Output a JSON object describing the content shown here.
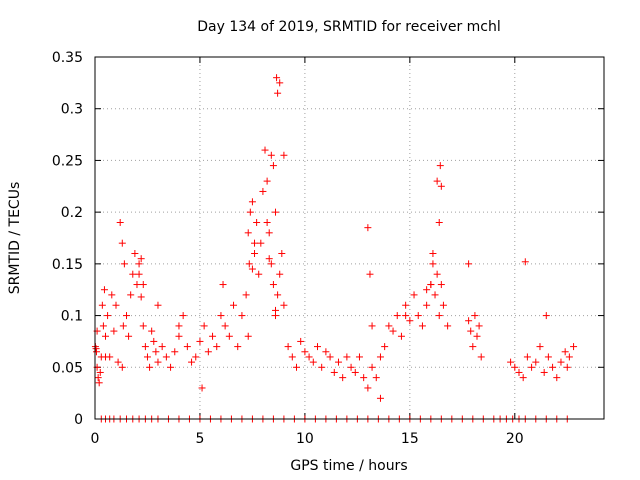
{
  "chart_data": {
    "type": "scatter",
    "title": "Day 134 of 2019, SRMTID for receiver mchl",
    "xlabel": "GPS time / hours",
    "ylabel": "SRMTID / TECUs",
    "xlim": [
      0,
      24.25
    ],
    "ylim": [
      0,
      0.35
    ],
    "xticks": [
      0,
      5,
      10,
      15,
      20
    ],
    "xtick_labels": [
      "0",
      "5",
      "10",
      "15",
      "20"
    ],
    "yticks": [
      0,
      0.05,
      0.1,
      0.15,
      0.2,
      0.25,
      0.3,
      0.35
    ],
    "ytick_labels": [
      "0",
      "0.05",
      "0.1",
      "0.15",
      "0.2",
      "0.25",
      "0.3",
      "0.35"
    ],
    "grid": true,
    "marker": "plus",
    "color": "#ff0000",
    "series": [
      {
        "name": "SRMTID",
        "x": [
          0.02,
          0.05,
          0.1,
          0.15,
          0.2,
          0.25,
          0.3,
          0.35,
          0.4,
          0.45,
          0.5,
          0.6,
          0.7,
          0.8,
          0.9,
          1.0,
          1.1,
          1.2,
          1.3,
          1.4,
          1.5,
          1.6,
          1.7,
          1.8,
          1.9,
          2.0,
          2.1,
          2.2,
          2.3,
          2.4,
          2.5,
          2.6,
          2.7,
          2.8,
          2.9,
          3.0,
          3.2,
          3.4,
          3.6,
          3.8,
          4.0,
          4.2,
          4.4,
          4.6,
          4.8,
          5.0,
          5.2,
          5.4,
          5.6,
          5.8,
          6.0,
          6.2,
          6.4,
          6.6,
          6.8,
          7.0,
          7.2,
          7.3,
          7.4,
          7.5,
          7.6,
          7.7,
          7.8,
          7.9,
          8.0,
          8.1,
          8.2,
          8.3,
          8.4,
          8.5,
          8.6,
          8.7,
          8.8,
          8.9,
          9.0,
          9.2,
          9.4,
          9.6,
          9.8,
          10.0,
          10.2,
          10.4,
          10.6,
          10.8,
          11.0,
          11.2,
          11.4,
          11.6,
          11.8,
          12.0,
          12.2,
          12.4,
          12.6,
          12.8,
          13.0,
          13.2,
          13.4,
          13.6,
          13.8,
          14.0,
          14.2,
          14.4,
          14.6,
          14.8,
          15.0,
          15.2,
          15.4,
          15.6,
          15.8,
          16.0,
          16.1,
          16.2,
          16.3,
          16.4,
          16.5,
          16.6,
          16.8,
          17.8,
          17.9,
          18.0,
          18.1,
          18.2,
          18.3,
          18.4,
          19.8,
          20.0,
          20.2,
          20.4,
          20.6,
          20.8,
          21.0,
          21.2,
          21.4,
          21.6,
          21.8,
          22.0,
          22.2,
          22.4,
          22.6,
          22.8,
          0.07,
          0.5,
          1.3,
          1.35,
          2.1,
          2.2,
          2.3,
          3.0,
          4.0,
          5.1,
          6.1,
          7.3,
          7.35,
          7.5,
          7.6,
          8.2,
          8.3,
          8.4,
          8.5,
          8.6,
          8.6,
          8.65,
          8.7,
          8.8,
          9.0,
          13.0,
          13.1,
          13.2,
          13.6,
          14.8,
          15.8,
          16.0,
          16.1,
          16.3,
          16.4,
          16.45,
          16.5,
          17.8,
          20.5,
          21.5,
          22.5,
          0.1,
          0.3,
          0.5,
          0.7,
          0.9,
          1.2,
          1.5,
          1.8,
          2.1,
          2.4,
          2.7,
          3.0,
          3.5,
          4.0,
          4.5,
          5.0,
          5.5,
          6.0,
          6.5,
          7.0,
          7.5,
          8.0,
          8.5,
          9.0,
          9.5,
          10.0,
          10.5,
          11.0,
          11.5,
          12.0,
          12.5,
          13.0,
          13.5,
          14.0,
          14.5,
          15.0,
          15.5,
          16.0,
          16.5,
          17.0,
          17.5,
          18.0,
          18.5,
          19.0,
          19.3,
          19.6,
          19.9,
          20.2,
          20.5,
          21.0,
          21.5,
          22.0,
          22.5
        ],
        "y": [
          0.07,
          0.068,
          0.05,
          0.04,
          0.035,
          0.045,
          0.06,
          0.11,
          0.09,
          0.125,
          0.08,
          0.1,
          0.06,
          0.12,
          0.085,
          0.11,
          0.055,
          0.19,
          0.17,
          0.15,
          0.1,
          0.08,
          0.12,
          0.14,
          0.16,
          0.13,
          0.15,
          0.118,
          0.09,
          0.07,
          0.06,
          0.05,
          0.085,
          0.075,
          0.065,
          0.055,
          0.07,
          0.06,
          0.05,
          0.065,
          0.08,
          0.1,
          0.07,
          0.055,
          0.06,
          0.075,
          0.09,
          0.065,
          0.08,
          0.07,
          0.1,
          0.09,
          0.08,
          0.11,
          0.07,
          0.1,
          0.12,
          0.18,
          0.2,
          0.21,
          0.16,
          0.19,
          0.14,
          0.17,
          0.22,
          0.26,
          0.23,
          0.18,
          0.15,
          0.13,
          0.1,
          0.12,
          0.14,
          0.16,
          0.11,
          0.07,
          0.06,
          0.05,
          0.075,
          0.065,
          0.06,
          0.055,
          0.07,
          0.05,
          0.065,
          0.06,
          0.045,
          0.055,
          0.04,
          0.06,
          0.05,
          0.045,
          0.06,
          0.04,
          0.03,
          0.05,
          0.04,
          0.06,
          0.07,
          0.09,
          0.085,
          0.1,
          0.08,
          0.11,
          0.095,
          0.12,
          0.1,
          0.09,
          0.11,
          0.13,
          0.15,
          0.12,
          0.14,
          0.1,
          0.13,
          0.11,
          0.09,
          0.095,
          0.085,
          0.07,
          0.1,
          0.08,
          0.09,
          0.06,
          0.055,
          0.05,
          0.045,
          0.04,
          0.06,
          0.05,
          0.055,
          0.07,
          0.045,
          0.06,
          0.05,
          0.04,
          0.055,
          0.065,
          0.06,
          0.07,
          0.065,
          0.06,
          0.05,
          0.09,
          0.14,
          0.155,
          0.13,
          0.11,
          0.09,
          0.03,
          0.13,
          0.08,
          0.15,
          0.145,
          0.17,
          0.19,
          0.155,
          0.255,
          0.245,
          0.2,
          0.105,
          0.33,
          0.315,
          0.325,
          0.255,
          0.185,
          0.14,
          0.09,
          0.02,
          0.1,
          0.125,
          0.13,
          0.16,
          0.23,
          0.19,
          0.245,
          0.225,
          0.15,
          0.152,
          0.1,
          0.05,
          0.085,
          0,
          0,
          0,
          0,
          0,
          0,
          0,
          0,
          0,
          0,
          0,
          0,
          0,
          0,
          0,
          0,
          0,
          0,
          0,
          0,
          0,
          0,
          0,
          0,
          0,
          0,
          0,
          0,
          0,
          0,
          0,
          0,
          0,
          0,
          0,
          0,
          0,
          0,
          0,
          0,
          0,
          0,
          0,
          0,
          0,
          0,
          0,
          0,
          0,
          0,
          0,
          0
        ]
      }
    ]
  }
}
